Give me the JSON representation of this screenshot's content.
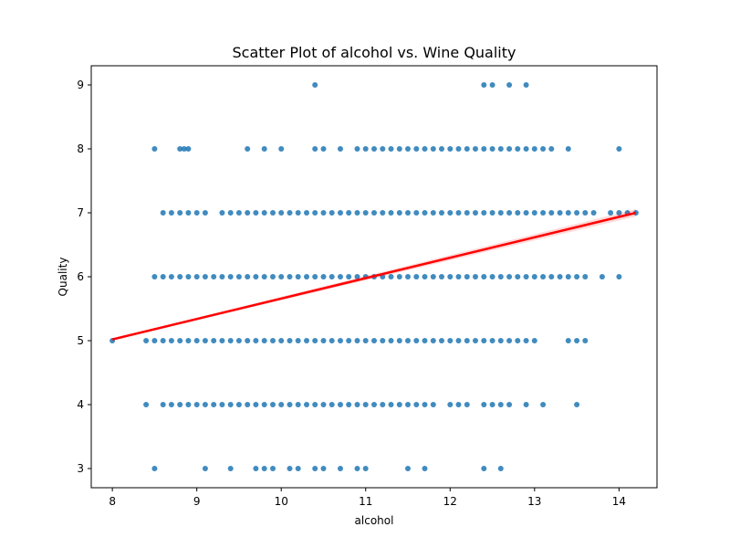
{
  "chart_data": {
    "type": "scatter",
    "title": "Scatter Plot of alcohol vs. Wine Quality",
    "xlabel": "alcohol",
    "ylabel": "Quality",
    "xlim": [
      7.75,
      14.45
    ],
    "ylim": [
      2.7,
      9.3
    ],
    "x_ticks": [
      8,
      9,
      10,
      11,
      12,
      13,
      14
    ],
    "y_ticks": [
      3,
      4,
      5,
      6,
      7,
      8,
      9
    ],
    "grid": false,
    "colors": {
      "points": "#1f77b4",
      "trend": "#ff0000"
    },
    "trend_line": {
      "x": [
        8.0,
        14.2
      ],
      "y": [
        5.02,
        7.0
      ]
    },
    "points_by_quality": {
      "9": [
        10.4,
        12.4,
        12.5,
        12.7,
        12.9
      ],
      "8": [
        8.5,
        8.8,
        8.85,
        8.9,
        9.6,
        9.8,
        10.0,
        10.4,
        10.5,
        10.7,
        10.9,
        11.0,
        11.1,
        11.2,
        11.3,
        11.4,
        11.5,
        11.6,
        11.7,
        11.8,
        11.9,
        12.0,
        12.1,
        12.2,
        12.3,
        12.4,
        12.5,
        12.6,
        12.7,
        12.8,
        12.9,
        13.0,
        13.1,
        13.2,
        13.4,
        14.0
      ],
      "7": [
        8.6,
        8.7,
        8.8,
        8.9,
        9.0,
        9.1,
        9.3,
        9.4,
        9.5,
        9.6,
        9.7,
        9.8,
        9.9,
        10.0,
        10.1,
        10.2,
        10.3,
        10.4,
        10.5,
        10.6,
        10.7,
        10.8,
        10.9,
        11.0,
        11.1,
        11.2,
        11.3,
        11.4,
        11.5,
        11.6,
        11.7,
        11.8,
        11.9,
        12.0,
        12.1,
        12.2,
        12.3,
        12.4,
        12.5,
        12.6,
        12.7,
        12.8,
        12.9,
        13.0,
        13.1,
        13.2,
        13.3,
        13.4,
        13.5,
        13.6,
        13.7,
        13.9,
        14.0,
        14.1,
        14.2
      ],
      "6": [
        8.5,
        8.6,
        8.7,
        8.8,
        8.9,
        9.0,
        9.1,
        9.2,
        9.3,
        9.4,
        9.5,
        9.6,
        9.7,
        9.8,
        9.9,
        10.0,
        10.1,
        10.2,
        10.3,
        10.4,
        10.5,
        10.6,
        10.7,
        10.8,
        10.9,
        11.0,
        11.1,
        11.2,
        11.3,
        11.4,
        11.5,
        11.6,
        11.7,
        11.8,
        11.9,
        12.0,
        12.1,
        12.2,
        12.3,
        12.4,
        12.5,
        12.6,
        12.7,
        12.8,
        12.9,
        13.0,
        13.1,
        13.2,
        13.3,
        13.4,
        13.5,
        13.6,
        13.8,
        14.0
      ],
      "5": [
        8.0,
        8.4,
        8.5,
        8.6,
        8.7,
        8.8,
        8.9,
        9.0,
        9.1,
        9.2,
        9.3,
        9.4,
        9.5,
        9.6,
        9.7,
        9.8,
        9.9,
        10.0,
        10.1,
        10.2,
        10.3,
        10.4,
        10.5,
        10.6,
        10.7,
        10.8,
        10.9,
        11.0,
        11.1,
        11.2,
        11.3,
        11.4,
        11.5,
        11.6,
        11.7,
        11.8,
        11.9,
        12.0,
        12.1,
        12.2,
        12.3,
        12.4,
        12.5,
        12.6,
        12.7,
        12.8,
        12.9,
        13.0,
        13.4,
        13.5,
        13.6
      ],
      "4": [
        8.4,
        8.6,
        8.7,
        8.8,
        8.9,
        9.0,
        9.1,
        9.2,
        9.3,
        9.4,
        9.5,
        9.6,
        9.7,
        9.8,
        9.9,
        10.0,
        10.1,
        10.2,
        10.3,
        10.4,
        10.5,
        10.6,
        10.7,
        10.8,
        10.9,
        11.0,
        11.1,
        11.2,
        11.3,
        11.4,
        11.5,
        11.6,
        11.7,
        11.8,
        12.0,
        12.1,
        12.2,
        12.4,
        12.5,
        12.6,
        12.7,
        12.9,
        13.1,
        13.5
      ],
      "3": [
        8.5,
        9.1,
        9.4,
        9.7,
        9.8,
        9.9,
        10.1,
        10.2,
        10.4,
        10.5,
        10.7,
        10.9,
        11.0,
        11.5,
        11.7,
        12.4,
        12.6
      ]
    }
  }
}
